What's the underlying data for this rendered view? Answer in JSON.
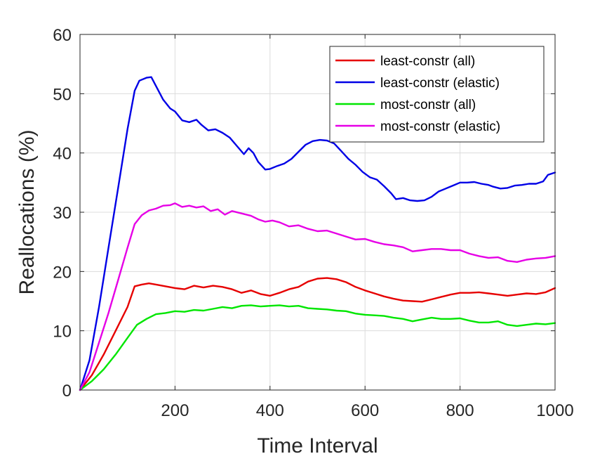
{
  "chart_data": {
    "type": "line",
    "title": "",
    "xlabel": "Time Interval",
    "ylabel": "Reallocations (%)",
    "xlim": [
      0,
      1000
    ],
    "ylim": [
      0,
      60
    ],
    "xticks": [
      200,
      400,
      600,
      800,
      1000
    ],
    "yticks": [
      0,
      10,
      20,
      30,
      40,
      50,
      60
    ],
    "xtick_labels": [
      "200",
      "400",
      "600",
      "800",
      "1000"
    ],
    "ytick_labels": [
      "0",
      "10",
      "20",
      "30",
      "40",
      "50",
      "60"
    ],
    "grid": true,
    "legend_position": "top-right",
    "series": [
      {
        "name": "least-constr (all)",
        "color": "#e60000",
        "points": [
          [
            0,
            0
          ],
          [
            25,
            2.5
          ],
          [
            50,
            6
          ],
          [
            75,
            10
          ],
          [
            100,
            14
          ],
          [
            115,
            17.5
          ],
          [
            130,
            17.8
          ],
          [
            145,
            18
          ],
          [
            160,
            17.8
          ],
          [
            180,
            17.5
          ],
          [
            200,
            17.2
          ],
          [
            220,
            17
          ],
          [
            240,
            17.6
          ],
          [
            260,
            17.3
          ],
          [
            280,
            17.6
          ],
          [
            300,
            17.4
          ],
          [
            320,
            17
          ],
          [
            340,
            16.4
          ],
          [
            360,
            16.8
          ],
          [
            380,
            16.2
          ],
          [
            400,
            15.9
          ],
          [
            420,
            16.4
          ],
          [
            440,
            17
          ],
          [
            460,
            17.4
          ],
          [
            480,
            18.3
          ],
          [
            500,
            18.8
          ],
          [
            520,
            18.9
          ],
          [
            540,
            18.7
          ],
          [
            560,
            18.2
          ],
          [
            580,
            17.4
          ],
          [
            600,
            16.8
          ],
          [
            620,
            16.3
          ],
          [
            640,
            15.8
          ],
          [
            660,
            15.4
          ],
          [
            680,
            15.1
          ],
          [
            700,
            15
          ],
          [
            720,
            14.9
          ],
          [
            740,
            15.3
          ],
          [
            760,
            15.7
          ],
          [
            780,
            16.1
          ],
          [
            800,
            16.4
          ],
          [
            820,
            16.4
          ],
          [
            840,
            16.5
          ],
          [
            860,
            16.3
          ],
          [
            880,
            16.1
          ],
          [
            900,
            15.9
          ],
          [
            920,
            16.1
          ],
          [
            940,
            16.3
          ],
          [
            960,
            16.2
          ],
          [
            980,
            16.5
          ],
          [
            1000,
            17.2
          ]
        ]
      },
      {
        "name": "least-constr (elastic)",
        "color": "#0000e6",
        "points": [
          [
            0,
            0
          ],
          [
            20,
            5
          ],
          [
            40,
            14
          ],
          [
            60,
            24
          ],
          [
            80,
            34
          ],
          [
            100,
            44
          ],
          [
            115,
            50.5
          ],
          [
            125,
            52.2
          ],
          [
            140,
            52.7
          ],
          [
            150,
            52.8
          ],
          [
            160,
            51.3
          ],
          [
            175,
            49
          ],
          [
            190,
            47.5
          ],
          [
            200,
            47
          ],
          [
            215,
            45.5
          ],
          [
            230,
            45.2
          ],
          [
            245,
            45.6
          ],
          [
            255,
            44.8
          ],
          [
            270,
            43.8
          ],
          [
            285,
            44
          ],
          [
            300,
            43.4
          ],
          [
            315,
            42.6
          ],
          [
            330,
            41.2
          ],
          [
            345,
            39.8
          ],
          [
            355,
            40.8
          ],
          [
            365,
            40
          ],
          [
            375,
            38.5
          ],
          [
            390,
            37.2
          ],
          [
            400,
            37.3
          ],
          [
            415,
            37.8
          ],
          [
            430,
            38.2
          ],
          [
            445,
            39
          ],
          [
            460,
            40.2
          ],
          [
            475,
            41.4
          ],
          [
            490,
            42
          ],
          [
            505,
            42.2
          ],
          [
            520,
            42.1
          ],
          [
            535,
            41.6
          ],
          [
            550,
            40.3
          ],
          [
            565,
            39
          ],
          [
            580,
            38
          ],
          [
            595,
            36.8
          ],
          [
            610,
            35.9
          ],
          [
            625,
            35.5
          ],
          [
            640,
            34.4
          ],
          [
            655,
            33.2
          ],
          [
            665,
            32.2
          ],
          [
            680,
            32.4
          ],
          [
            695,
            32
          ],
          [
            710,
            31.9
          ],
          [
            725,
            32
          ],
          [
            740,
            32.6
          ],
          [
            755,
            33.5
          ],
          [
            770,
            34
          ],
          [
            785,
            34.5
          ],
          [
            800,
            35
          ],
          [
            815,
            35
          ],
          [
            830,
            35.1
          ],
          [
            845,
            34.8
          ],
          [
            860,
            34.6
          ],
          [
            870,
            34.3
          ],
          [
            885,
            34
          ],
          [
            900,
            34.1
          ],
          [
            915,
            34.5
          ],
          [
            930,
            34.6
          ],
          [
            945,
            34.8
          ],
          [
            960,
            34.8
          ],
          [
            975,
            35.2
          ],
          [
            985,
            36.3
          ],
          [
            1000,
            36.7
          ]
        ]
      },
      {
        "name": "most-constr (all)",
        "color": "#00e600",
        "points": [
          [
            0,
            0
          ],
          [
            25,
            1.5
          ],
          [
            50,
            3.5
          ],
          [
            75,
            6
          ],
          [
            100,
            8.8
          ],
          [
            120,
            11
          ],
          [
            140,
            12
          ],
          [
            160,
            12.8
          ],
          [
            180,
            13
          ],
          [
            200,
            13.3
          ],
          [
            220,
            13.2
          ],
          [
            240,
            13.5
          ],
          [
            260,
            13.4
          ],
          [
            280,
            13.7
          ],
          [
            300,
            14
          ],
          [
            320,
            13.8
          ],
          [
            340,
            14.2
          ],
          [
            360,
            14.3
          ],
          [
            380,
            14.1
          ],
          [
            400,
            14.2
          ],
          [
            420,
            14.3
          ],
          [
            440,
            14.1
          ],
          [
            460,
            14.2
          ],
          [
            480,
            13.8
          ],
          [
            500,
            13.7
          ],
          [
            520,
            13.6
          ],
          [
            540,
            13.4
          ],
          [
            560,
            13.3
          ],
          [
            580,
            12.9
          ],
          [
            600,
            12.7
          ],
          [
            620,
            12.6
          ],
          [
            640,
            12.5
          ],
          [
            660,
            12.2
          ],
          [
            680,
            12
          ],
          [
            700,
            11.6
          ],
          [
            720,
            11.9
          ],
          [
            740,
            12.2
          ],
          [
            760,
            12
          ],
          [
            780,
            12
          ],
          [
            800,
            12.1
          ],
          [
            820,
            11.7
          ],
          [
            840,
            11.4
          ],
          [
            860,
            11.4
          ],
          [
            880,
            11.6
          ],
          [
            900,
            11
          ],
          [
            920,
            10.8
          ],
          [
            940,
            11
          ],
          [
            960,
            11.2
          ],
          [
            980,
            11.1
          ],
          [
            1000,
            11.3
          ]
        ]
      },
      {
        "name": "most-constr (elastic)",
        "color": "#e600e6",
        "points": [
          [
            0,
            0
          ],
          [
            20,
            3
          ],
          [
            40,
            8
          ],
          [
            60,
            13
          ],
          [
            80,
            18.5
          ],
          [
            100,
            24
          ],
          [
            115,
            28
          ],
          [
            130,
            29.5
          ],
          [
            145,
            30.3
          ],
          [
            160,
            30.6
          ],
          [
            175,
            31.1
          ],
          [
            190,
            31.2
          ],
          [
            200,
            31.5
          ],
          [
            215,
            30.9
          ],
          [
            230,
            31.1
          ],
          [
            245,
            30.8
          ],
          [
            260,
            31
          ],
          [
            275,
            30.2
          ],
          [
            290,
            30.5
          ],
          [
            305,
            29.6
          ],
          [
            320,
            30.2
          ],
          [
            340,
            29.8
          ],
          [
            360,
            29.4
          ],
          [
            375,
            28.8
          ],
          [
            390,
            28.4
          ],
          [
            405,
            28.6
          ],
          [
            420,
            28.3
          ],
          [
            440,
            27.6
          ],
          [
            460,
            27.8
          ],
          [
            480,
            27.2
          ],
          [
            500,
            26.8
          ],
          [
            520,
            26.9
          ],
          [
            540,
            26.4
          ],
          [
            560,
            25.9
          ],
          [
            580,
            25.4
          ],
          [
            600,
            25.5
          ],
          [
            620,
            25
          ],
          [
            640,
            24.6
          ],
          [
            660,
            24.4
          ],
          [
            680,
            24.1
          ],
          [
            700,
            23.4
          ],
          [
            720,
            23.6
          ],
          [
            740,
            23.8
          ],
          [
            760,
            23.8
          ],
          [
            780,
            23.6
          ],
          [
            800,
            23.6
          ],
          [
            820,
            23
          ],
          [
            840,
            22.6
          ],
          [
            860,
            22.3
          ],
          [
            880,
            22.4
          ],
          [
            900,
            21.8
          ],
          [
            920,
            21.6
          ],
          [
            940,
            22
          ],
          [
            960,
            22.2
          ],
          [
            980,
            22.3
          ],
          [
            1000,
            22.6
          ]
        ]
      }
    ]
  }
}
